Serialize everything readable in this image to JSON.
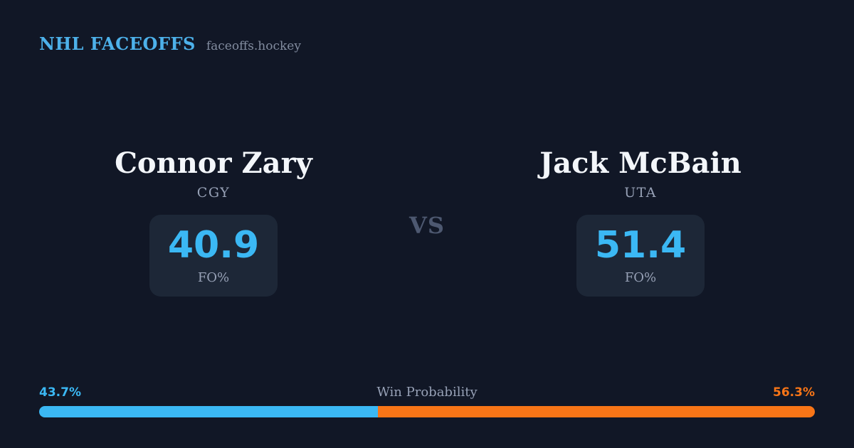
{
  "header": {
    "brand": "NHL FACEOFFS",
    "site": "faceoffs.hockey"
  },
  "matchup": {
    "vs_label": "VS",
    "players": [
      {
        "name": "Connor Zary",
        "team": "CGY",
        "stat_value": "40.9",
        "stat_label": "FO%"
      },
      {
        "name": "Jack McBain",
        "team": "UTA",
        "stat_value": "51.4",
        "stat_label": "FO%"
      }
    ]
  },
  "win_probability": {
    "label": "Win Probability",
    "left_pct_label": "43.7%",
    "right_pct_label": "56.3%",
    "left_value": 43.7,
    "right_value": 56.3
  },
  "colors": {
    "background": "#111726",
    "stat_box_background": "#1d2737",
    "accent_blue": "#3bb8f4",
    "header_blue": "#4db1ea",
    "accent_orange": "#f87517",
    "name_white": "#f3f6fa",
    "muted_gray": "#97a1b6",
    "vs_gray": "#4d5870"
  }
}
